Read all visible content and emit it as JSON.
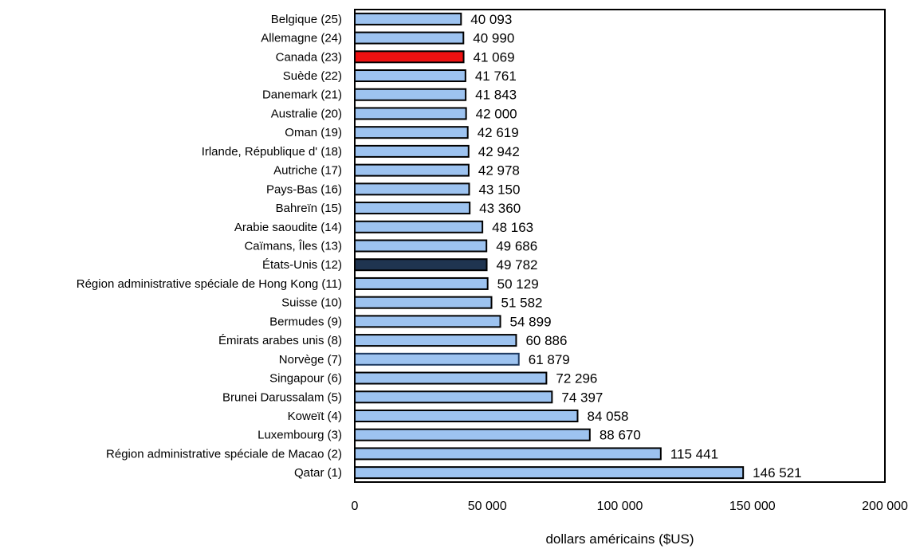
{
  "chart_data": {
    "type": "bar",
    "orientation": "horizontal",
    "title": "",
    "xlabel": "dollars américains ($US)",
    "ylabel": "",
    "xlim": [
      0,
      200000
    ],
    "x_ticks": [
      0,
      50000,
      100000,
      150000,
      200000
    ],
    "x_tick_labels": [
      "0",
      "50 000",
      "100 000",
      "150 000",
      "200 000"
    ],
    "grid": false,
    "categories": [
      "Belgique (25)",
      "Allemagne (24)",
      "Canada (23)",
      "Suède (22)",
      "Danemark (21)",
      "Australie (20)",
      "Oman (19)",
      "Irlande, République d' (18)",
      "Autriche (17)",
      "Pays-Bas (16)",
      "Bahreïn (15)",
      "Arabie saoudite (14)",
      "Caïmans, Îles (13)",
      "États-Unis (12)",
      "Région administrative spéciale de Hong Kong (11)",
      "Suisse (10)",
      "Bermudes (9)",
      "Émirats arabes unis (8)",
      "Norvège (7)",
      "Singapour (6)",
      "Brunei Darussalam (5)",
      "Koweït (4)",
      "Luxembourg (3)",
      "Région administrative spéciale de Macao (2)",
      "Qatar (1)"
    ],
    "values": [
      40093,
      40990,
      41069,
      41761,
      41843,
      42000,
      42619,
      42942,
      42978,
      43150,
      43360,
      48163,
      49686,
      49782,
      50129,
      51582,
      54899,
      60886,
      61879,
      72296,
      74397,
      84058,
      88670,
      115441,
      146521
    ],
    "value_labels": [
      "40 093",
      "40 990",
      "41 069",
      "41 761",
      "41 843",
      "42 000",
      "42 619",
      "42 942",
      "42 978",
      "43 150",
      "43 360",
      "48 163",
      "49 686",
      "49 782",
      "50 129",
      "51 582",
      "54 899",
      "60 886",
      "61 879",
      "72 296",
      "74 397",
      "84 058",
      "88 670",
      "115 441",
      "146 521"
    ],
    "colors": {
      "default": "#9dc3f0",
      "highlights": {
        "Canada (23)": "#ee1111",
        "États-Unis (12)": "#1f3450"
      },
      "bar_outline": "#000000",
      "alt_outline": {
        "Norvège (7)": "#1f3a60"
      }
    }
  }
}
